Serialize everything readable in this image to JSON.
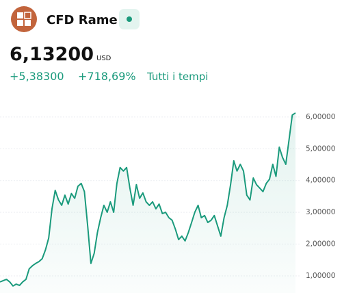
{
  "header": {
    "name": "CFD Rame",
    "price": "6,13200",
    "currency": "USD",
    "change": "+5,38300",
    "change_percent": "+718,69%",
    "period": "Tutti i tempi"
  },
  "chart_data": {
    "type": "line",
    "color": "#1a9a7c",
    "values": [
      0.81,
      0.85,
      0.89,
      0.81,
      0.68,
      0.74,
      0.7,
      0.81,
      0.89,
      1.22,
      1.32,
      1.39,
      1.45,
      1.54,
      1.82,
      2.19,
      3.11,
      3.69,
      3.39,
      3.22,
      3.54,
      3.26,
      3.59,
      3.44,
      3.82,
      3.91,
      3.65,
      2.57,
      1.39,
      1.71,
      2.36,
      2.83,
      3.22,
      3.0,
      3.33,
      3.0,
      3.91,
      4.41,
      4.3,
      4.41,
      3.76,
      3.22,
      3.87,
      3.44,
      3.61,
      3.33,
      3.22,
      3.33,
      3.11,
      3.26,
      2.96,
      3.0,
      2.83,
      2.75,
      2.47,
      2.14,
      2.25,
      2.1,
      2.36,
      2.68,
      3.0,
      3.22,
      2.83,
      2.9,
      2.68,
      2.75,
      2.9,
      2.57,
      2.25,
      2.83,
      3.22,
      3.87,
      4.62,
      4.3,
      4.51,
      4.3,
      3.54,
      3.39,
      4.08,
      3.87,
      3.76,
      3.65,
      3.91,
      4.04,
      4.51,
      4.13,
      5.05,
      4.73,
      4.51,
      5.27,
      6.06,
      6.13
    ],
    "ylim": [
      0.46,
      6.45
    ],
    "yticks": [
      {
        "value": 1,
        "label": "1,00000"
      },
      {
        "value": 2,
        "label": "2,00000"
      },
      {
        "value": 3,
        "label": "3,00000"
      },
      {
        "value": 4,
        "label": "4,00000"
      },
      {
        "value": 5,
        "label": "5,00000"
      },
      {
        "value": 6,
        "label": "6,00000"
      }
    ],
    "grid": true
  }
}
